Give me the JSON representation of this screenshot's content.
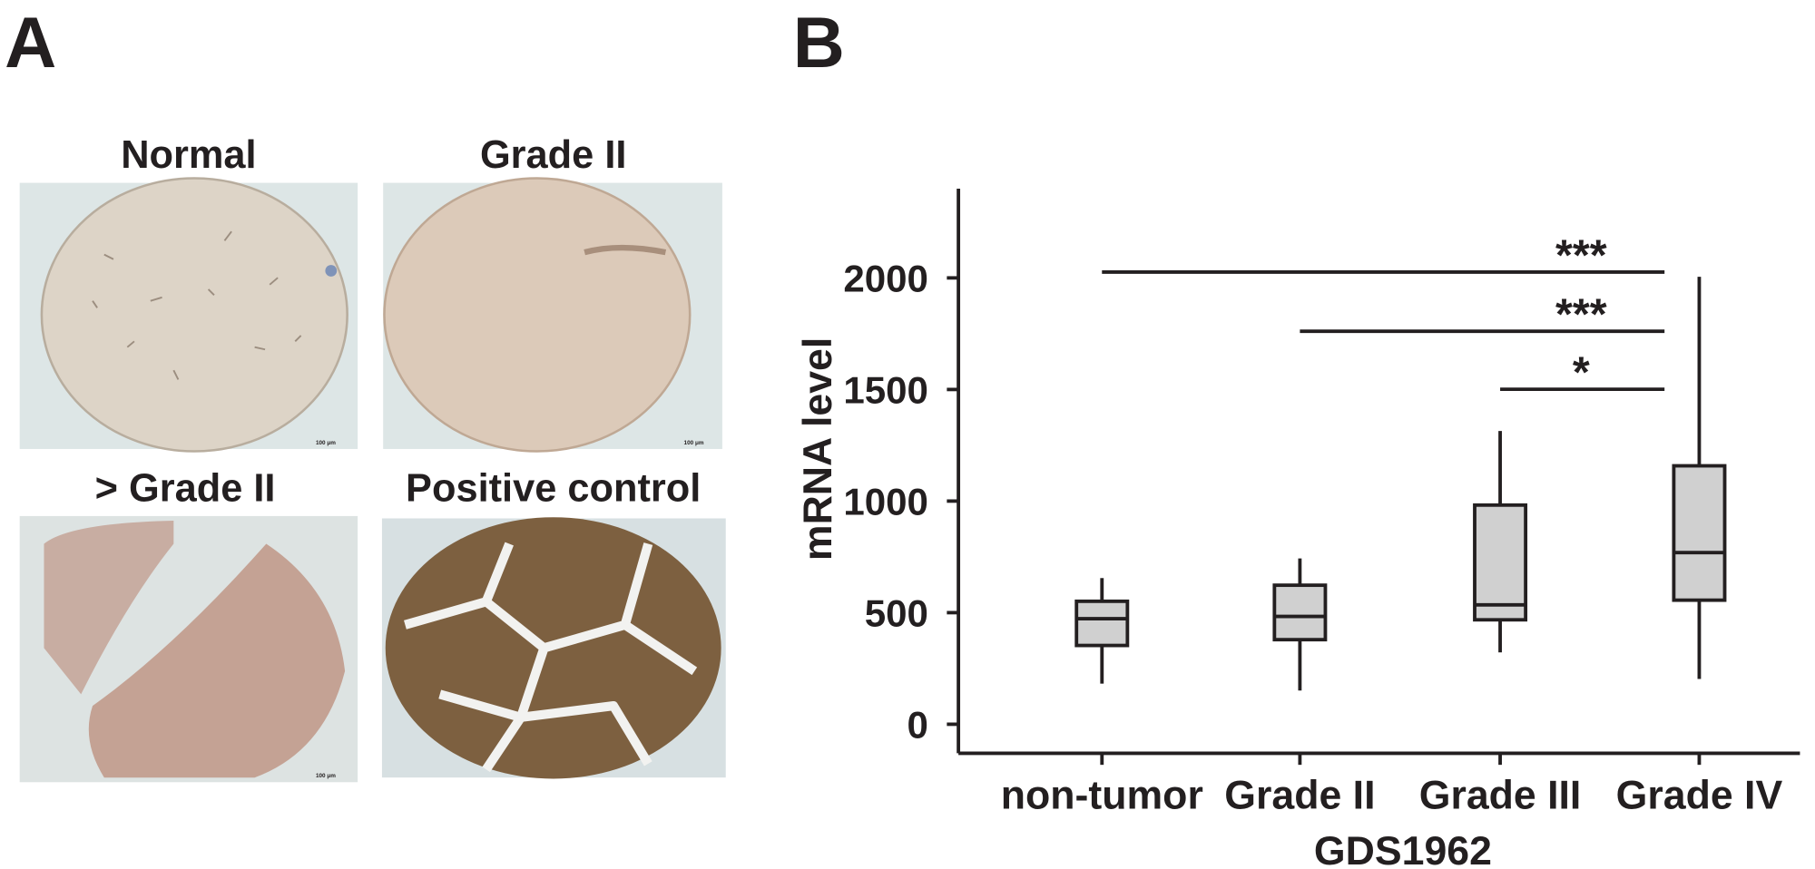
{
  "panel_a": {
    "label": "A",
    "scale_bar": "100 μm",
    "images": [
      {
        "title": "Normal"
      },
      {
        "title": "Grade II"
      },
      {
        "title": "> Grade II"
      },
      {
        "title": "Positive control"
      }
    ]
  },
  "chart_data": {
    "type": "box",
    "panel_label": "B",
    "categories": [
      "non-tumor",
      "Grade II",
      "Grade III",
      "Grade IV"
    ],
    "boxes": [
      {
        "min": 182,
        "q1": 353,
        "median": 473,
        "q3": 551,
        "max": 655
      },
      {
        "min": 151,
        "q1": 379,
        "median": 483,
        "q3": 623,
        "max": 743
      },
      {
        "min": 322,
        "q1": 468,
        "median": 535,
        "q3": 982,
        "max": 1314
      },
      {
        "min": 203,
        "q1": 556,
        "median": 769,
        "q3": 1158,
        "max": 2005
      }
    ],
    "color": "#d0d0d0",
    "ylim": [
      -130,
      2400
    ],
    "yticks": [
      0,
      500,
      1000,
      1500,
      2000
    ],
    "ylabel": "mRNA level",
    "xlabel": "GDS1962",
    "annotations": [
      {
        "text": "***",
        "from": "non-tumor",
        "to": "Grade IV",
        "y": 2026
      },
      {
        "text": "***",
        "from": "Grade II",
        "to": "Grade IV",
        "y": 1761
      },
      {
        "text": "*",
        "from": "Grade III",
        "to": "Grade IV",
        "y": 1501
      }
    ]
  }
}
